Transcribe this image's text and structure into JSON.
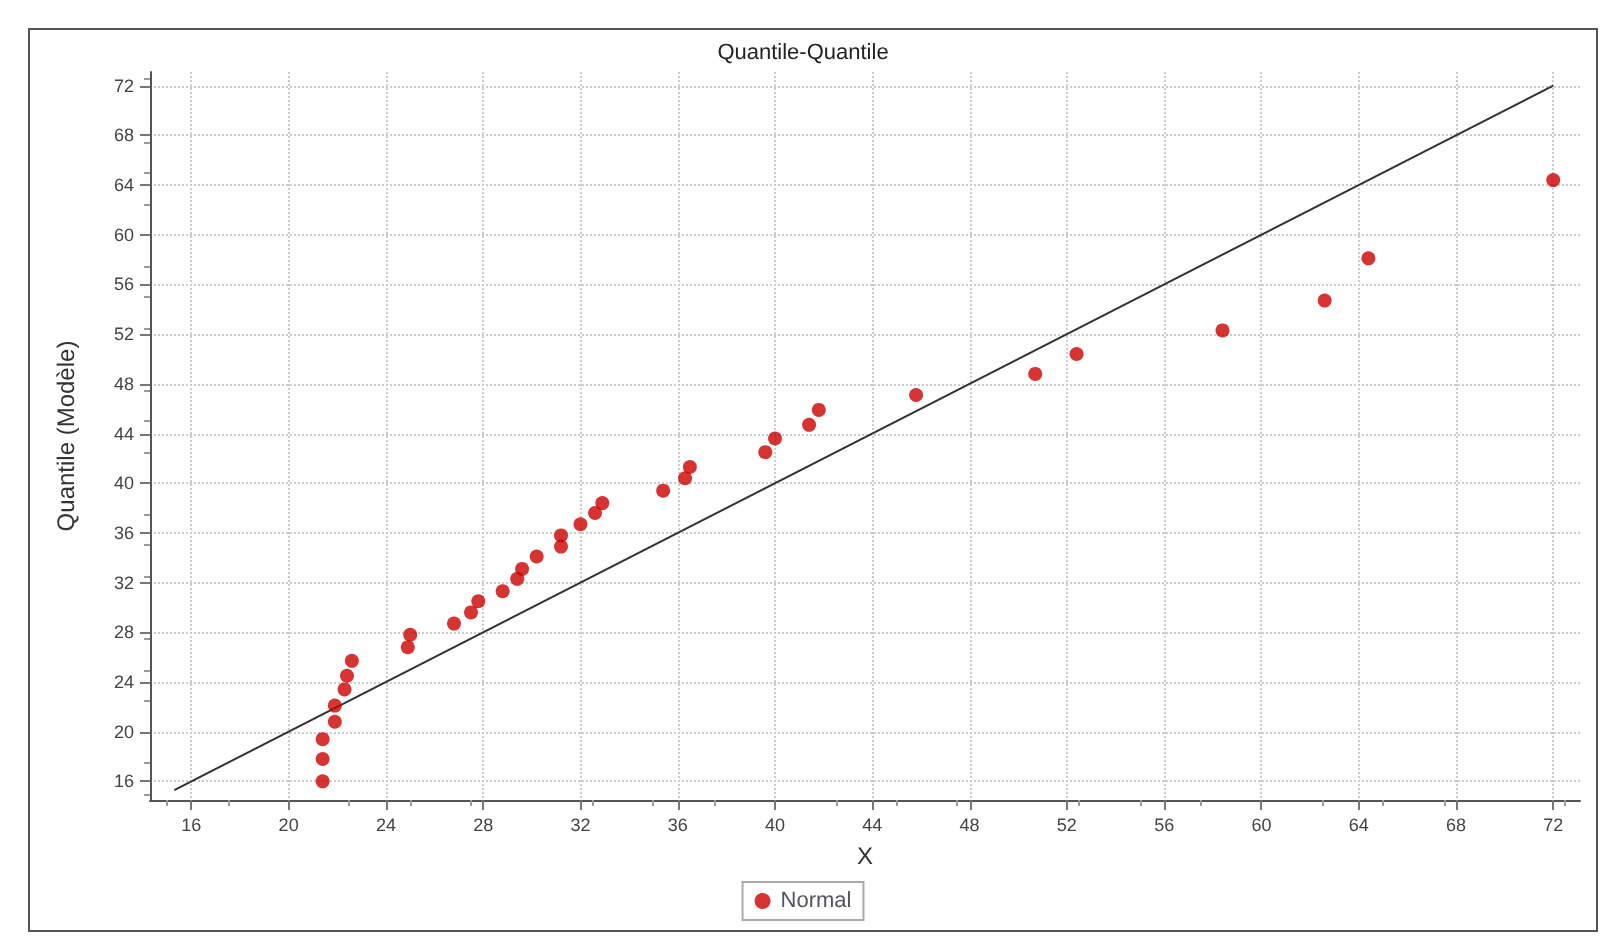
{
  "chart_data": {
    "type": "scatter",
    "title": "Quantile-Quantile",
    "xlabel": "X",
    "ylabel": "Quantile (Modèle)",
    "xlim": [
      14.3,
      73.1
    ],
    "xticks": [
      16,
      20,
      24,
      28,
      32,
      36,
      40,
      44,
      48,
      52,
      56,
      60,
      64,
      68,
      72
    ],
    "ylim": [
      14.5,
      73.1
    ],
    "yticks": [
      16,
      20,
      24,
      28,
      32,
      36,
      40,
      44,
      48,
      52,
      56,
      60,
      64,
      68,
      72
    ],
    "grid": true,
    "legend": "bottom",
    "marker": "circle",
    "series": [
      {
        "name": "Normal",
        "color": "#cc0000",
        "x": [
          21.4,
          21.4,
          21.4,
          21.9,
          21.9,
          22.3,
          22.4,
          22.6,
          24.9,
          25.0,
          26.8,
          27.5,
          27.8,
          28.8,
          29.4,
          29.6,
          30.2,
          31.2,
          31.2,
          32.0,
          32.6,
          32.9,
          35.4,
          36.3,
          36.5,
          39.6,
          40.0,
          41.4,
          41.8,
          45.8,
          50.7,
          52.4,
          58.4,
          62.6,
          64.4,
          72.0
        ],
        "values": [
          16.0,
          17.8,
          19.4,
          20.8,
          22.1,
          23.4,
          24.5,
          25.7,
          26.8,
          27.8,
          28.7,
          29.6,
          30.5,
          31.3,
          32.3,
          33.1,
          34.1,
          34.9,
          35.8,
          36.7,
          37.6,
          38.4,
          39.4,
          40.4,
          41.3,
          42.5,
          43.6,
          44.7,
          45.9,
          47.1,
          48.8,
          50.4,
          52.3,
          54.7,
          58.1,
          64.4
        ]
      },
      {
        "type": "line",
        "color": "#333333",
        "line_style": "solid",
        "marker": "none",
        "x": [
          15.3,
          72
        ],
        "values": [
          15.3,
          72
        ]
      }
    ]
  }
}
